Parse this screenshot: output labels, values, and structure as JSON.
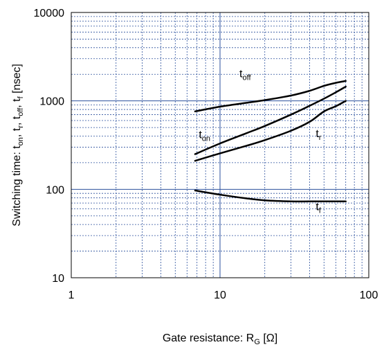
{
  "chart_data": {
    "type": "line",
    "x_scale": "log",
    "y_scale": "log",
    "xlim": [
      1,
      100
    ],
    "ylim": [
      10,
      10000
    ],
    "grid": true,
    "x_ticks": [
      1,
      10,
      100
    ],
    "x_tick_labels": [
      "1",
      "10",
      "100"
    ],
    "y_ticks": [
      10,
      100,
      1000,
      10000
    ],
    "y_tick_labels": [
      "10",
      "100",
      "1000",
      "10000"
    ],
    "xlabel": {
      "main": "Gate resistance: R",
      "sub": "G",
      "tail": " [Ω]"
    },
    "ylabel": {
      "parts": [
        {
          "t": "Switching time:  t",
          "sub": false
        },
        {
          "t": "on",
          "sub": true
        },
        {
          "t": ", t",
          "sub": false
        },
        {
          "t": "r",
          "sub": true
        },
        {
          "t": ", t",
          "sub": false
        },
        {
          "t": "off",
          "sub": true
        },
        {
          "t": ", t",
          "sub": false
        },
        {
          "t": "f",
          "sub": true
        },
        {
          "t": " [nsec]",
          "sub": false
        }
      ]
    },
    "colors": {
      "grid": "#2a4f9c",
      "axis": "#000000",
      "line": "#000000"
    },
    "series": [
      {
        "label_main": "t",
        "label_sub": "off",
        "label_at": [
          13.5,
          1850
        ],
        "x": [
          6.8,
          10,
          15,
          20,
          30,
          40,
          50,
          60,
          70
        ],
        "y": [
          760,
          860,
          950,
          1020,
          1150,
          1300,
          1480,
          1600,
          1680
        ]
      },
      {
        "label_main": "t",
        "label_sub": "on",
        "label_at": [
          7.2,
          380
        ],
        "x": [
          6.8,
          10,
          15,
          20,
          30,
          40,
          50,
          60,
          70
        ],
        "y": [
          250,
          330,
          430,
          520,
          700,
          880,
          1060,
          1250,
          1450
        ]
      },
      {
        "label_main": "t",
        "label_sub": "r",
        "label_at": [
          44,
          390
        ],
        "x": [
          6.8,
          10,
          15,
          20,
          30,
          40,
          50,
          60,
          70
        ],
        "y": [
          210,
          255,
          310,
          360,
          460,
          580,
          760,
          870,
          1000
        ]
      },
      {
        "label_main": "t",
        "label_sub": "f",
        "label_at": [
          44,
          58
        ],
        "x": [
          6.8,
          10,
          15,
          20,
          30,
          40,
          50,
          60,
          70
        ],
        "y": [
          97,
          87,
          79,
          75,
          73,
          73,
          73,
          73,
          73
        ]
      }
    ]
  }
}
